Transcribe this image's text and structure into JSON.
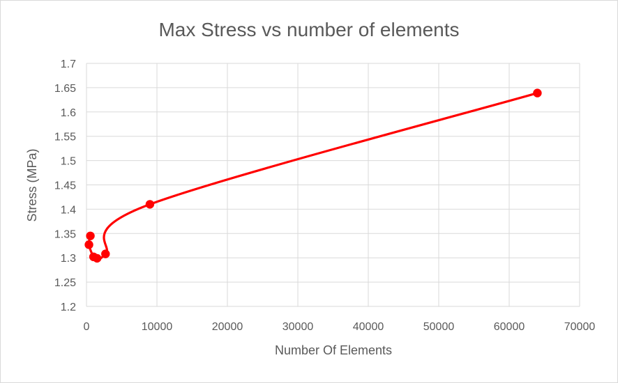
{
  "chart_data": {
    "type": "scatter",
    "title": "Max Stress vs number of elements",
    "xlabel": "Number Of Elements",
    "ylabel": "Stress (MPa)",
    "xlim": [
      0,
      70000
    ],
    "ylim": [
      1.2,
      1.7
    ],
    "x_ticks": [
      "0",
      "10000",
      "20000",
      "30000",
      "40000",
      "50000",
      "60000",
      "70000"
    ],
    "y_ticks": [
      "1.2",
      "1.25",
      "1.3",
      "1.35",
      "1.4",
      "1.45",
      "1.5",
      "1.55",
      "1.6",
      "1.65",
      "1.7"
    ],
    "grid": true,
    "smooth_line": true,
    "legend": "none",
    "series": [
      {
        "color": "#ff0000",
        "x": [
          550,
          350,
          1000,
          1500,
          2700,
          9000,
          64000
        ],
        "y": [
          1.345,
          1.327,
          1.302,
          1.299,
          1.308,
          1.41,
          1.639
        ]
      }
    ]
  }
}
